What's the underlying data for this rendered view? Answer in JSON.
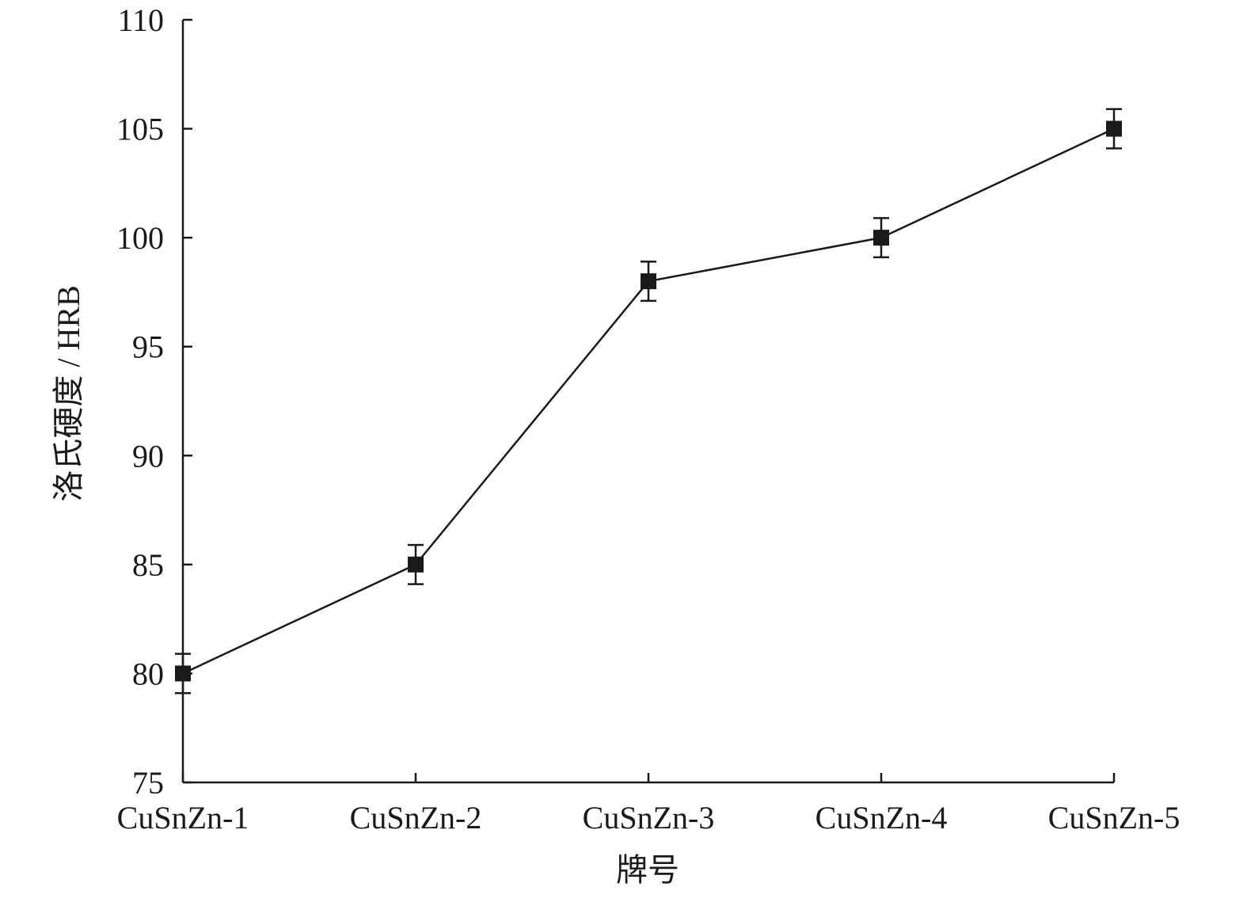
{
  "chart_data": {
    "type": "line",
    "title": "",
    "xlabel": "牌号",
    "ylabel": "洛氏硬度 / HRB",
    "categories": [
      "CuSnZn-1",
      "CuSnZn-2",
      "CuSnZn-3",
      "CuSnZn-4",
      "CuSnZn-5"
    ],
    "series": [
      {
        "values": [
          80,
          85,
          98,
          100,
          105
        ],
        "error": [
          0.9,
          0.9,
          0.9,
          0.9,
          0.9
        ],
        "marker": "square",
        "color": "#1a1a1a"
      }
    ],
    "ylim": [
      75,
      110
    ],
    "yticks": [
      75,
      80,
      85,
      90,
      95,
      100,
      105,
      110
    ],
    "grid": false,
    "legend": "none"
  }
}
